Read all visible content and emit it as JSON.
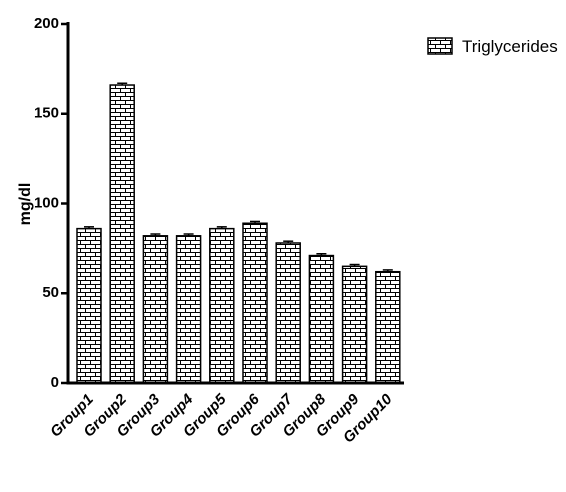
{
  "chart_data": {
    "type": "bar",
    "categories": [
      "Group1",
      "Group2",
      "Group3",
      "Group4",
      "Group5",
      "Group6",
      "Group7",
      "Group8",
      "Group9",
      "Group10"
    ],
    "series": [
      {
        "name": "Triglycerides",
        "values": [
          86,
          166,
          82,
          82,
          86,
          89,
          78,
          71,
          65,
          62
        ],
        "errors": [
          1,
          1,
          1,
          1,
          1,
          1,
          1,
          1,
          1,
          1
        ],
        "fill_pattern": "brick",
        "color": "#000000"
      }
    ],
    "xlabel": "",
    "ylabel": "mg/dl",
    "ylim": [
      0,
      200
    ],
    "yticks": [
      "0",
      "50",
      "100",
      "150",
      "200"
    ],
    "grid": false,
    "legend_position": "top-right"
  }
}
